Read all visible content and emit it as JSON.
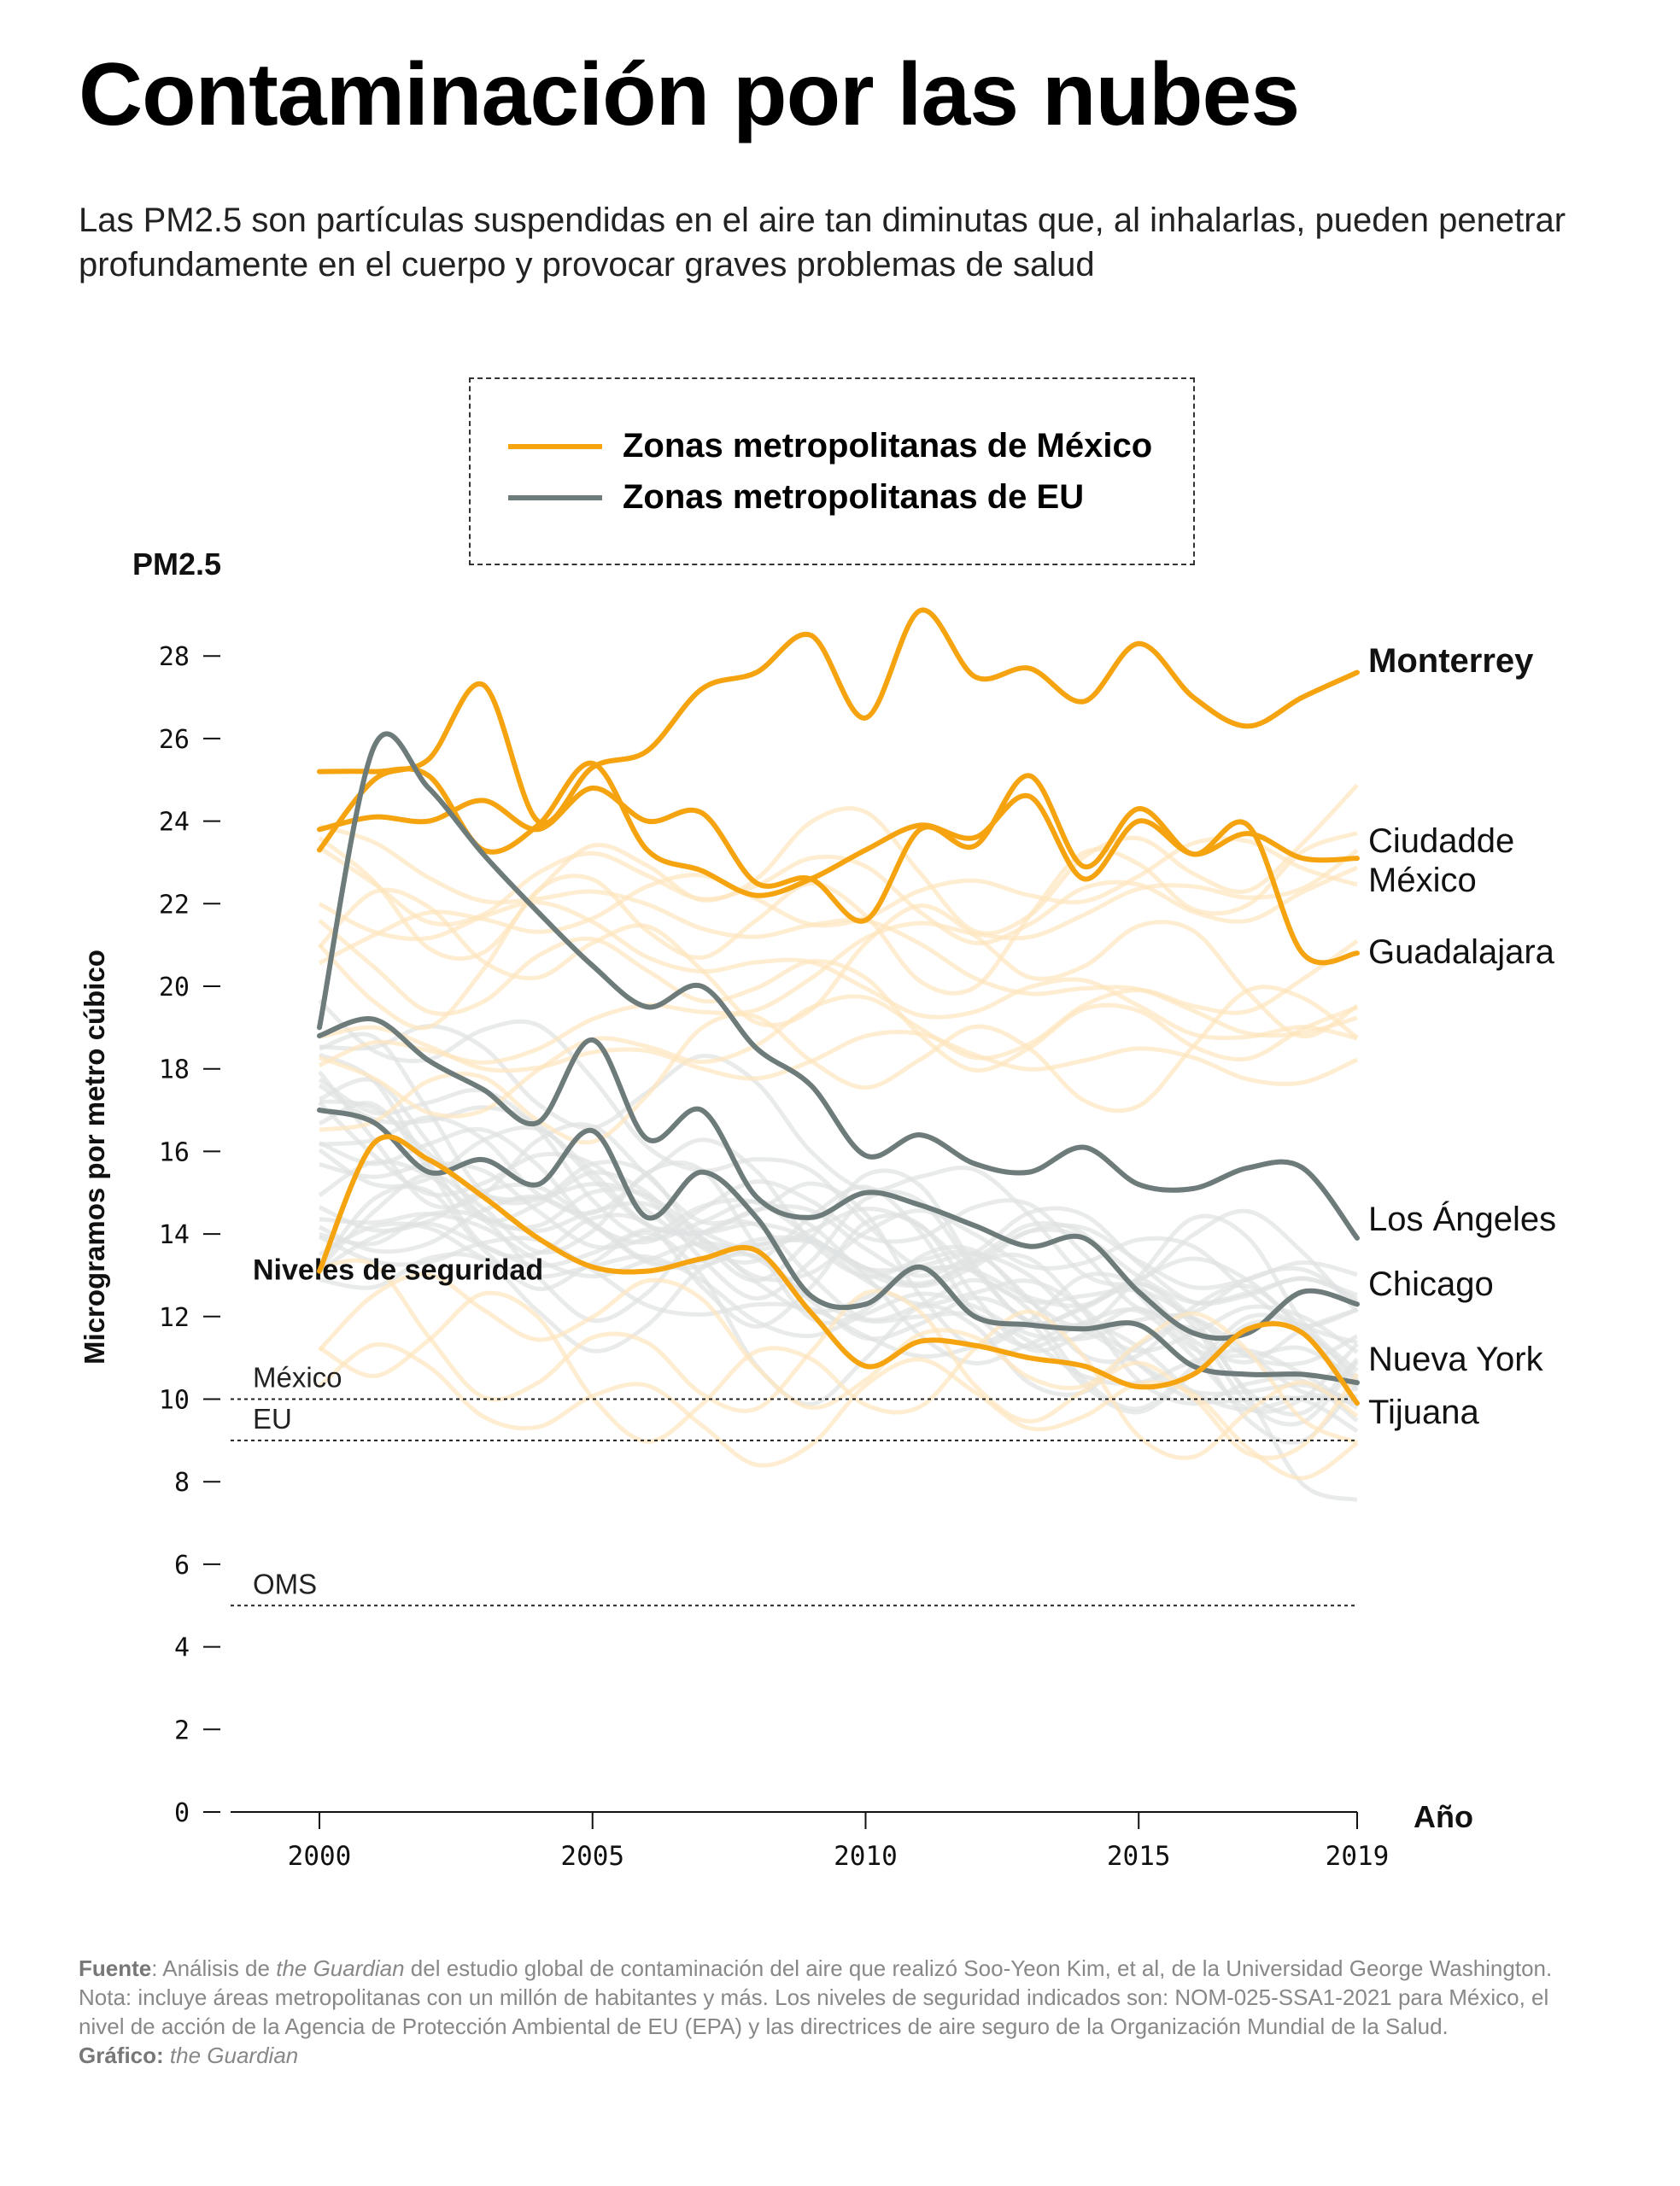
{
  "title": "Contaminación por las nubes",
  "subtitle": "Las PM2.5 son partículas suspendidas en el aire tan diminutas que, al inhalarlas, pueden penetrar profundamente en el cuerpo y provocar graves problemas de salud",
  "colors": {
    "mexico": "#f5a30f",
    "us": "#6e7b7b",
    "mexico_faint": "#fde6bd",
    "us_faint": "#dfe3e3"
  },
  "legend": {
    "mexico_label": "Zonas metropolitanas de México",
    "us_label": "Zonas metropolitanas de EU"
  },
  "safety": {
    "heading": "Niveles de seguridad",
    "levels": [
      {
        "label": "México",
        "value": 10
      },
      {
        "label": "EU",
        "value": 9
      },
      {
        "label": "OMS",
        "value": 5
      }
    ]
  },
  "footer": {
    "source_label": "Fuente",
    "source_pre": ": Análisis de ",
    "source_italic": "the Guardian",
    "source_post": " del estudio global de contaminación del aire que realizó Soo-Yeon Kim, et al, de la Universidad George Washington. Nota: incluye áreas metropolitanas con un millón de habitantes y más. Los niveles de seguridad indicados son: NOM-025-SSA1-2021 para México, el nivel de acción de la Agencia de Protección Ambiental de EU (EPA) y las directrices de aire seguro de la Organización Mundial de la Salud.",
    "credit_label": "Gráfico:",
    "credit_italic": "the Guardian"
  },
  "chart_data": {
    "type": "line",
    "ylabel_top": "PM2.5",
    "ylabel": "Microgramos por metro cúbico",
    "xlabel": "Año",
    "ylim": [
      0,
      29
    ],
    "xlim": [
      2000,
      2019
    ],
    "y_ticks": [
      0,
      2,
      4,
      6,
      8,
      10,
      12,
      14,
      16,
      18,
      20,
      22,
      24,
      26,
      28
    ],
    "x_ticks": [
      2000,
      2005,
      2010,
      2015,
      2019
    ],
    "grid": false,
    "x": [
      2000,
      2001,
      2002,
      2003,
      2004,
      2005,
      2006,
      2007,
      2008,
      2009,
      2010,
      2011,
      2012,
      2013,
      2014,
      2015,
      2016,
      2017,
      2018,
      2019
    ],
    "series": [
      {
        "name": "Monterrey",
        "group": "mexico",
        "bold": true,
        "values": [
          23.3,
          25.0,
          25.5,
          27.3,
          24.0,
          25.3,
          25.7,
          27.2,
          27.6,
          28.5,
          26.5,
          29.1,
          27.5,
          27.7,
          26.9,
          28.3,
          27.0,
          26.3,
          27.0,
          27.6
        ]
      },
      {
        "name": "Ciudadde México",
        "group": "mexico",
        "bold": false,
        "values": [
          25.2,
          25.2,
          25.1,
          23.3,
          23.9,
          25.4,
          23.3,
          22.8,
          22.2,
          22.6,
          23.3,
          23.9,
          23.6,
          24.6,
          22.6,
          24.0,
          23.2,
          23.7,
          23.1,
          23.1
        ]
      },
      {
        "name": "Guadalajara",
        "group": "mexico",
        "bold": false,
        "values": [
          23.8,
          24.1,
          24.0,
          24.5,
          23.8,
          24.8,
          24.0,
          24.2,
          22.5,
          22.6,
          21.6,
          23.8,
          23.4,
          25.1,
          22.9,
          24.3,
          23.2,
          23.9,
          20.8,
          20.8
        ]
      },
      {
        "name": "Los Ángeles",
        "group": "us",
        "bold": false,
        "values": [
          19.0,
          25.8,
          24.8,
          23.2,
          21.8,
          20.5,
          19.5,
          20.0,
          18.5,
          17.6,
          15.9,
          16.4,
          15.7,
          15.5,
          16.1,
          15.2,
          15.1,
          15.6,
          15.6,
          13.9
        ]
      },
      {
        "name": "Chicago",
        "group": "us",
        "bold": false,
        "values": [
          18.8,
          19.2,
          18.2,
          17.5,
          16.7,
          18.7,
          16.3,
          17.0,
          14.9,
          14.4,
          15.0,
          14.7,
          14.2,
          13.7,
          13.9,
          12.6,
          11.6,
          11.6,
          12.6,
          12.3
        ]
      },
      {
        "name": "Nueva York",
        "group": "us",
        "bold": false,
        "values": [
          17.0,
          16.7,
          15.5,
          15.8,
          15.2,
          16.5,
          14.4,
          15.5,
          14.4,
          12.5,
          12.3,
          13.2,
          12.0,
          11.8,
          11.7,
          11.8,
          10.8,
          10.6,
          10.6,
          10.4
        ]
      },
      {
        "name": "Tijuana",
        "group": "mexico",
        "bold": false,
        "values": [
          13.1,
          16.2,
          15.8,
          14.9,
          13.9,
          13.2,
          13.1,
          13.4,
          13.6,
          12.1,
          10.8,
          11.4,
          11.3,
          11.0,
          10.8,
          10.3,
          10.6,
          11.7,
          11.6,
          9.9
        ]
      }
    ]
  }
}
